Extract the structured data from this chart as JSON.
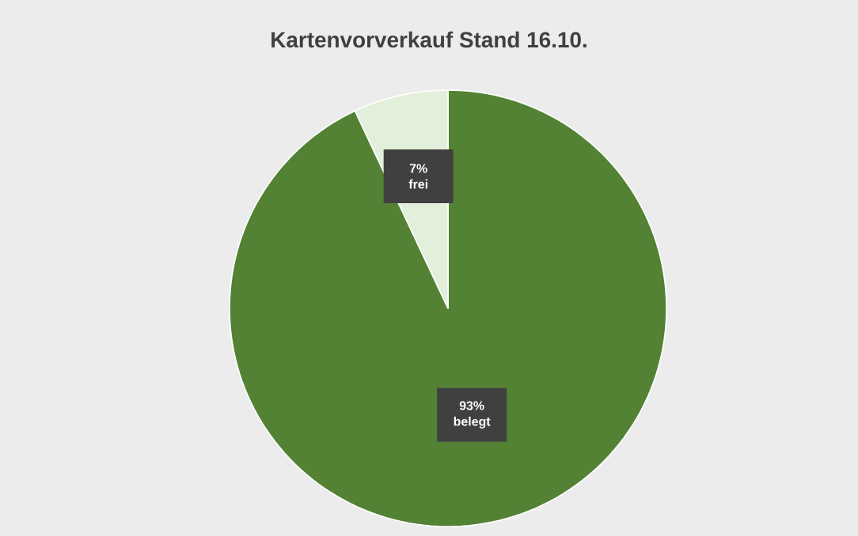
{
  "chart_data": {
    "type": "pie",
    "title": "Kartenvorverkauf Stand 16.10.",
    "categories": [
      "belegt",
      "frei"
    ],
    "values": [
      93,
      7
    ],
    "colors": [
      "#548235",
      "#e2efda"
    ],
    "value_labels": [
      "93%",
      "7%"
    ]
  }
}
